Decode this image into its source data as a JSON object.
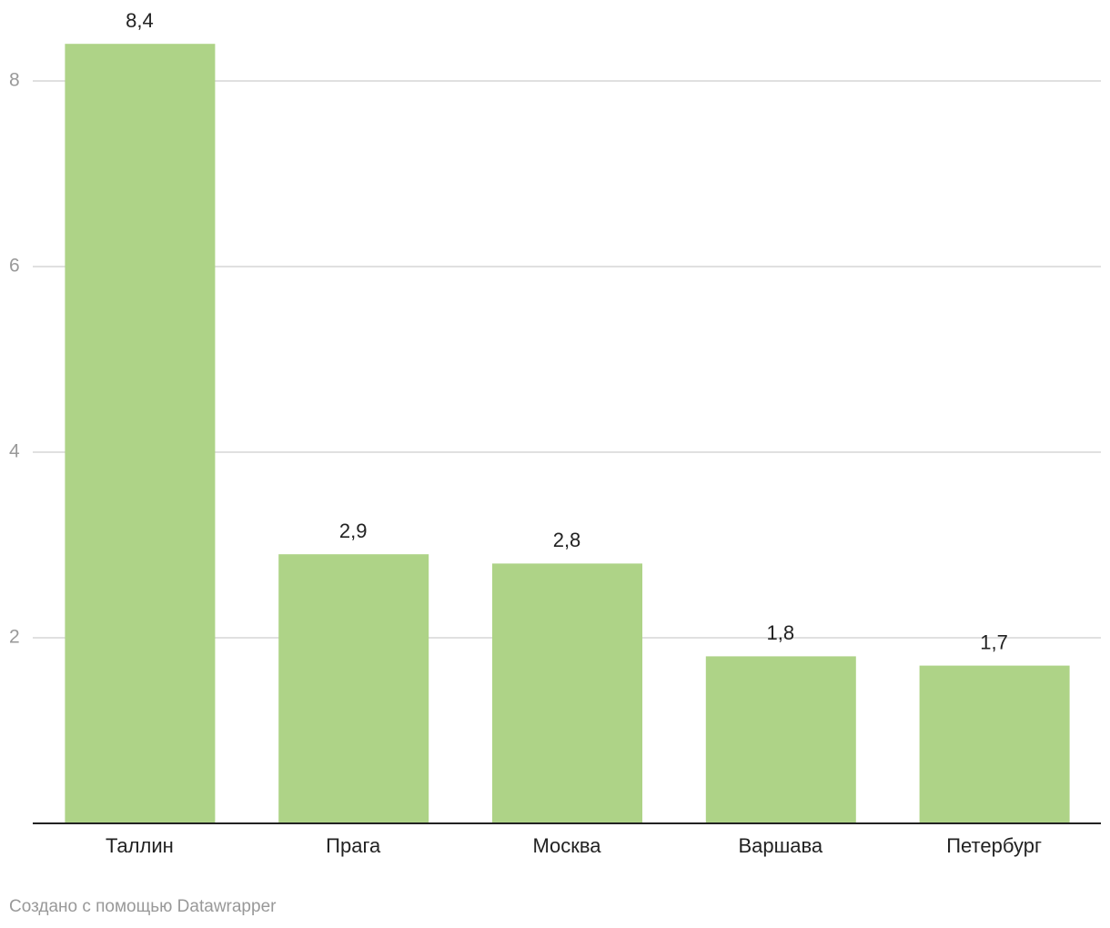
{
  "chart_data": {
    "type": "bar",
    "categories": [
      "Таллин",
      "Прага",
      "Москва",
      "Варшава",
      "Петербург"
    ],
    "values": [
      8.4,
      2.9,
      2.8,
      1.8,
      1.7
    ],
    "value_labels": [
      "8,4",
      "2,9",
      "2,8",
      "1,8",
      "1,7"
    ],
    "color": "#aed387",
    "ylim": [
      0,
      8.8
    ],
    "yticks": [
      2,
      4,
      6,
      8
    ],
    "grid": true,
    "source": "Создано с помощью Datawrapper"
  }
}
